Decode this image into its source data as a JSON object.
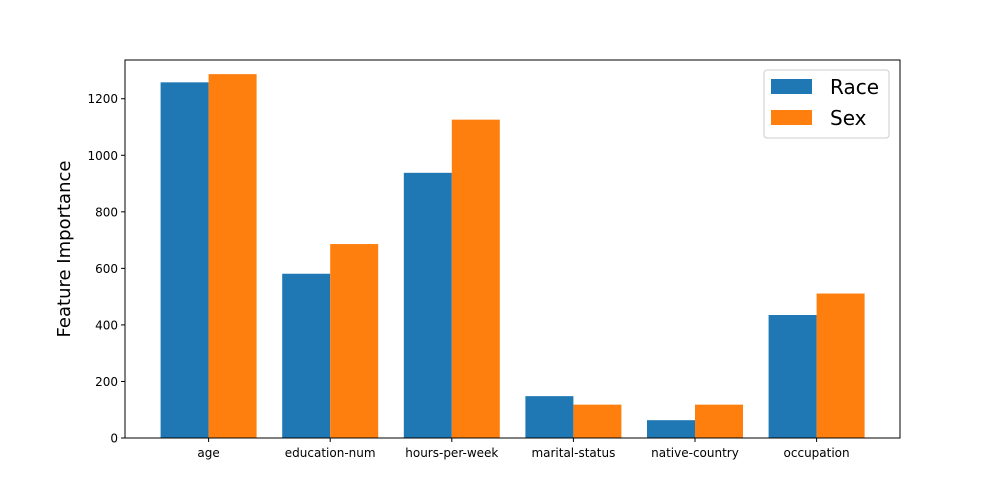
{
  "chart_data": {
    "type": "bar",
    "title": "",
    "xlabel": "",
    "ylabel": "Feature Importance",
    "categories": [
      "age",
      "education-num",
      "hours-per-week",
      "marital-status",
      "native-country",
      "occupation"
    ],
    "series": [
      {
        "name": "Race",
        "color": "#1f77b4",
        "values": [
          1258,
          581,
          938,
          148,
          63,
          435
        ]
      },
      {
        "name": "Sex",
        "color": "#ff7f0e",
        "values": [
          1287,
          686,
          1126,
          118,
          118,
          511
        ]
      }
    ],
    "ylim": [
      0,
      1337
    ],
    "yticks": [
      0,
      200,
      400,
      600,
      800,
      1000,
      1200
    ],
    "ytick_labels": [
      "0",
      "200",
      "400",
      "600",
      "800",
      "1000",
      "1200"
    ],
    "grid": false,
    "legend_position": "top-right"
  }
}
